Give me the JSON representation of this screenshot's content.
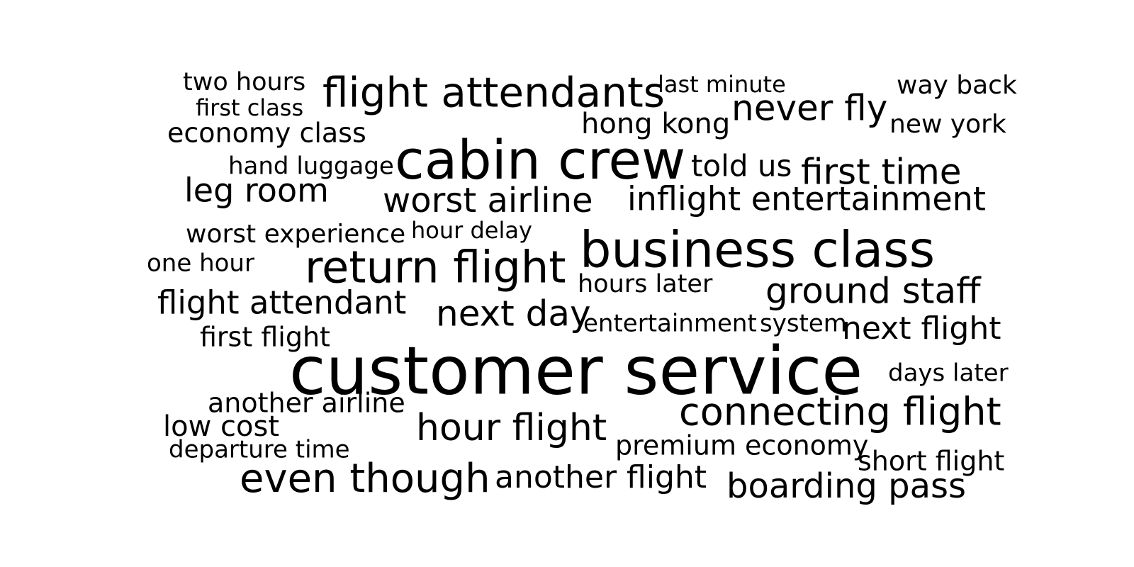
{
  "text_color": "#000000",
  "background_color": "#ffffff",
  "words": [
    "two hours",
    "flight attendants",
    "last minute",
    "way back",
    "first class",
    "never fly",
    "hong kong",
    "new york",
    "economy class",
    "cabin crew",
    "hand luggage",
    "told us",
    "first time",
    "leg room",
    "worst airline",
    "inflight entertainment",
    "worst experience",
    "hour delay",
    "business class",
    "one hour",
    "return flight",
    "hours later",
    "ground staff",
    "flight attendant",
    "next day",
    "entertainment",
    "system",
    "next flight",
    "first flight",
    "customer service",
    "days later",
    "another airline",
    "connecting flight",
    "low cost",
    "hour flight",
    "premium economy",
    "departure time",
    "short flight",
    "even though",
    "another flight",
    "boarding pass"
  ]
}
